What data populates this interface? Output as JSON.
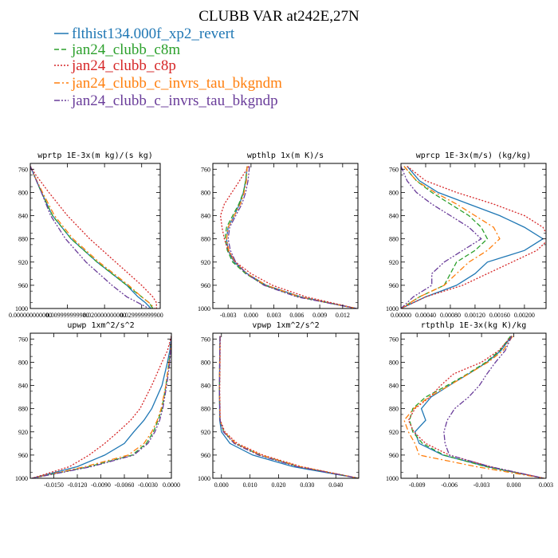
{
  "figure": {
    "title": "CLUBB VAR at242E,27N",
    "legend": [
      {
        "name": "flthist134.000f_xp2_revert",
        "color": "#1f77b4",
        "dash": "solid"
      },
      {
        "name": "jan24_clubb_c8m",
        "color": "#2ca02c",
        "dash": "dash"
      },
      {
        "name": "jan24_clubb_c8p",
        "color": "#d62728",
        "dash": "dot"
      },
      {
        "name": "jan24_clubb_c_invrs_tau_bkgndm",
        "color": "#ff7f0e",
        "dash": "dashdot"
      },
      {
        "name": "jan24_clubb_c_invrs_tau_bkgndp",
        "color": "#6a3d9a",
        "dash": "dashdotdot"
      }
    ]
  },
  "chart_data": [
    {
      "type": "line",
      "title": "wprtp  1E-3x(m kg)/(s kg)",
      "xlim": [
        0.0,
        0.035
      ],
      "ylim": [
        1000,
        750
      ],
      "xticks": [
        0.0,
        0.01,
        0.02,
        0.03
      ],
      "xtick_labels": [
        "0.000000000000",
        "0.009999999980",
        "0.020000000000",
        "0.029999999900"
      ],
      "yticks": [
        760,
        800,
        840,
        880,
        920,
        960,
        1000
      ],
      "ytick_labels": [
        "760",
        "800",
        "840",
        "880",
        "920",
        "960",
        "1000"
      ],
      "y": [
        755,
        770,
        800,
        840,
        880,
        920,
        960,
        980,
        990,
        1000
      ],
      "series": [
        {
          "name": "flthist134.000f_xp2_revert",
          "values": [
            0.0,
            0.001,
            0.003,
            0.006,
            0.011,
            0.018,
            0.026,
            0.029,
            0.031,
            0.0325
          ]
        },
        {
          "name": "jan24_clubb_c8m",
          "values": [
            0.0,
            0.001,
            0.003,
            0.006,
            0.011,
            0.018,
            0.026,
            0.03,
            0.032,
            0.033
          ]
        },
        {
          "name": "jan24_clubb_c8p",
          "values": [
            0.0,
            0.0015,
            0.005,
            0.01,
            0.016,
            0.023,
            0.03,
            0.033,
            0.034,
            0.034
          ]
        },
        {
          "name": "jan24_clubb_c_invrs_tau_bkgndm",
          "values": [
            0.0,
            0.001,
            0.0033,
            0.0065,
            0.0115,
            0.0185,
            0.0265,
            0.03,
            0.032,
            0.0335
          ]
        },
        {
          "name": "jan24_clubb_c_invrs_tau_bkgndp",
          "values": [
            0.0,
            0.001,
            0.003,
            0.0055,
            0.0095,
            0.015,
            0.022,
            0.026,
            0.029,
            0.032
          ]
        }
      ]
    },
    {
      "type": "line",
      "title": "wpthlp  1x(m K)/s",
      "xlim": [
        -0.005,
        0.014
      ],
      "ylim": [
        1000,
        750
      ],
      "xticks": [
        -0.003,
        0.0,
        0.003,
        0.006,
        0.009,
        0.012
      ],
      "xtick_labels": [
        "-0.003",
        "0.000",
        "0.003",
        "0.006",
        "0.009",
        "0.012"
      ],
      "yticks": [
        760,
        800,
        840,
        880,
        920,
        960,
        1000
      ],
      "ytick_labels": [
        "760",
        "800",
        "840",
        "880",
        "920",
        "960",
        "1000"
      ],
      "y": [
        755,
        780,
        800,
        820,
        840,
        860,
        880,
        900,
        920,
        940,
        960,
        980,
        1000
      ],
      "series": [
        {
          "name": "flthist134.000f_xp2_revert",
          "values": [
            -0.0005,
            -0.0007,
            -0.001,
            -0.0015,
            -0.0022,
            -0.003,
            -0.0032,
            -0.003,
            -0.0022,
            -0.0005,
            0.002,
            0.0065,
            0.0138
          ]
        },
        {
          "name": "jan24_clubb_c8m",
          "values": [
            -0.0005,
            -0.0007,
            -0.001,
            -0.0016,
            -0.0024,
            -0.0032,
            -0.0034,
            -0.0031,
            -0.0024,
            -0.0007,
            0.0018,
            0.0062,
            0.0138
          ]
        },
        {
          "name": "jan24_clubb_c8p",
          "values": [
            -0.0003,
            -0.0015,
            -0.0025,
            -0.0035,
            -0.004,
            -0.0038,
            -0.0035,
            -0.003,
            -0.002,
            0.0,
            0.0028,
            0.0072,
            0.0138
          ]
        },
        {
          "name": "jan24_clubb_c_invrs_tau_bkgndm",
          "values": [
            -0.0005,
            -0.0006,
            -0.0009,
            -0.0014,
            -0.0022,
            -0.003,
            -0.0032,
            -0.0029,
            -0.0021,
            -0.0005,
            0.002,
            0.0064,
            0.0138
          ]
        },
        {
          "name": "jan24_clubb_c_invrs_tau_bkgndp",
          "values": [
            -0.0002,
            -0.0004,
            -0.0007,
            -0.0012,
            -0.002,
            -0.0028,
            -0.003,
            -0.0027,
            -0.002,
            -0.0006,
            0.0017,
            0.006,
            0.0138
          ]
        }
      ]
    },
    {
      "type": "line",
      "title": "wprcp  1E-3x(m/s) (kg/kg)",
      "xlim": [
        0.0,
        0.00235
      ],
      "ylim": [
        1000,
        750
      ],
      "xticks": [
        0.0,
        0.0004,
        0.0008,
        0.0012,
        0.0016,
        0.002
      ],
      "xtick_labels": [
        "0.00000",
        "0.00040",
        "0.00080",
        "0.00120",
        "0.00160",
        "0.00200"
      ],
      "yticks": [
        760,
        800,
        840,
        880,
        920,
        960,
        1000
      ],
      "ytick_labels": [
        "760",
        "800",
        "840",
        "880",
        "920",
        "960",
        "1000"
      ],
      "y": [
        755,
        780,
        800,
        820,
        840,
        860,
        880,
        900,
        920,
        940,
        960,
        980,
        1000
      ],
      "series": [
        {
          "name": "flthist134.000f_xp2_revert",
          "values": [
            0.0001,
            0.0003,
            0.0006,
            0.0011,
            0.0016,
            0.002,
            0.0023,
            0.002,
            0.0014,
            0.0012,
            0.0009,
            0.0004,
            0.0
          ]
        },
        {
          "name": "jan24_clubb_c8m",
          "values": [
            5e-05,
            0.00025,
            0.0005,
            0.0008,
            0.0011,
            0.0013,
            0.0014,
            0.0012,
            0.0009,
            0.0008,
            0.0007,
            0.0003,
            0.0
          ]
        },
        {
          "name": "jan24_clubb_c8p",
          "values": [
            0.0001,
            0.0004,
            0.0009,
            0.0015,
            0.002,
            0.0023,
            0.0024,
            0.0022,
            0.0018,
            0.0014,
            0.001,
            0.0004,
            0.0
          ]
        },
        {
          "name": "jan24_clubb_c_invrs_tau_bkgndm",
          "values": [
            5e-05,
            0.00025,
            0.00055,
            0.0009,
            0.0012,
            0.0015,
            0.0016,
            0.0014,
            0.0011,
            0.0009,
            0.0007,
            0.0003,
            0.0
          ]
        },
        {
          "name": "jan24_clubb_c_invrs_tau_bkgndp",
          "values": [
            0.0,
            0.0001,
            0.00025,
            0.0005,
            0.0008,
            0.0011,
            0.0013,
            0.001,
            0.0007,
            0.0005,
            0.0005,
            0.0002,
            0.0
          ]
        }
      ]
    },
    {
      "type": "line",
      "title": "upwp  1xm^2/s^2",
      "xlim": [
        -0.018,
        0.0
      ],
      "ylim": [
        1000,
        750
      ],
      "xticks": [
        -0.015,
        -0.012,
        -0.009,
        -0.006,
        -0.003,
        0.0
      ],
      "xtick_labels": [
        "-0.0150",
        "-0.0120",
        "-0.0090",
        "-0.0060",
        "-0.0030",
        "0.0000"
      ],
      "yticks": [
        760,
        800,
        840,
        880,
        920,
        960,
        1000
      ],
      "ytick_labels": [
        "760",
        "800",
        "840",
        "880",
        "920",
        "960",
        "1000"
      ],
      "y": [
        755,
        780,
        800,
        840,
        880,
        900,
        920,
        940,
        960,
        980,
        1000
      ],
      "series": [
        {
          "name": "flthist134.000f_xp2_revert",
          "values": [
            0.0,
            -0.0002,
            -0.0005,
            -0.0012,
            -0.0025,
            -0.0035,
            -0.0048,
            -0.006,
            -0.0085,
            -0.012,
            -0.0178
          ]
        },
        {
          "name": "jan24_clubb_c8m",
          "values": [
            0.0,
            -0.0001,
            -0.0003,
            -0.0007,
            -0.0012,
            -0.0017,
            -0.0023,
            -0.0032,
            -0.005,
            -0.0105,
            -0.0178
          ]
        },
        {
          "name": "jan24_clubb_c8p",
          "values": [
            0.0,
            -0.0005,
            -0.0012,
            -0.0025,
            -0.004,
            -0.0052,
            -0.0068,
            -0.0085,
            -0.0105,
            -0.013,
            -0.0178
          ]
        },
        {
          "name": "jan24_clubb_c_invrs_tau_bkgndm",
          "values": [
            0.0,
            -0.0001,
            -0.0003,
            -0.0007,
            -0.0013,
            -0.0018,
            -0.0025,
            -0.0035,
            -0.0055,
            -0.011,
            -0.0178
          ]
        },
        {
          "name": "jan24_clubb_c_invrs_tau_bkgndp",
          "values": [
            0.0,
            -0.0001,
            -0.0002,
            -0.0006,
            -0.0011,
            -0.0015,
            -0.0021,
            -0.003,
            -0.0048,
            -0.0102,
            -0.0178
          ]
        }
      ]
    },
    {
      "type": "line",
      "title": "vpwp  1xm^2/s^2",
      "xlim": [
        -0.003,
        0.048
      ],
      "ylim": [
        1000,
        750
      ],
      "xticks": [
        0.0,
        0.01,
        0.02,
        0.03,
        0.04
      ],
      "xtick_labels": [
        "0.000",
        "0.010",
        "0.020",
        "0.030",
        "0.040"
      ],
      "yticks": [
        760,
        800,
        840,
        880,
        920,
        960,
        1000
      ],
      "ytick_labels": [
        "760",
        "800",
        "840",
        "880",
        "920",
        "960",
        "1000"
      ],
      "y": [
        755,
        800,
        850,
        900,
        920,
        940,
        960,
        980,
        1000
      ],
      "series": [
        {
          "name": "flthist134.000f_xp2_revert",
          "values": [
            -0.0005,
            -0.0006,
            -0.0007,
            -0.0006,
            0.0,
            0.003,
            0.011,
            0.025,
            0.048
          ]
        },
        {
          "name": "jan24_clubb_c8m",
          "values": [
            -0.0005,
            -0.0006,
            -0.0007,
            -0.0005,
            0.0008,
            0.0048,
            0.0135,
            0.027,
            0.048
          ]
        },
        {
          "name": "jan24_clubb_c8p",
          "values": [
            -0.0004,
            -0.0005,
            -0.0006,
            -0.0004,
            0.0012,
            0.0055,
            0.0145,
            0.028,
            0.048
          ]
        },
        {
          "name": "jan24_clubb_c_invrs_tau_bkgndm",
          "values": [
            -0.0005,
            -0.0006,
            -0.0007,
            -0.0005,
            0.0009,
            0.005,
            0.0138,
            0.0275,
            0.048
          ]
        },
        {
          "name": "jan24_clubb_c_invrs_tau_bkgndp",
          "values": [
            -0.0005,
            -0.0006,
            -0.0007,
            -0.0005,
            0.0007,
            0.0045,
            0.013,
            0.0265,
            0.048
          ]
        }
      ]
    },
    {
      "type": "line",
      "title": "rtpthlp  1E-3x(kg K)/kg",
      "xlim": [
        -0.0105,
        0.003
      ],
      "ylim": [
        1000,
        750
      ],
      "xticks": [
        -0.009,
        -0.006,
        -0.003,
        0.0,
        0.003
      ],
      "xtick_labels": [
        "-0.009",
        "-0.006",
        "-0.003",
        "0.000",
        "0.003"
      ],
      "yticks": [
        760,
        800,
        840,
        880,
        920,
        960,
        1000
      ],
      "ytick_labels": [
        "760",
        "800",
        "840",
        "880",
        "920",
        "960",
        "1000"
      ],
      "y": [
        755,
        780,
        800,
        820,
        840,
        860,
        880,
        900,
        920,
        940,
        960,
        980,
        1000
      ],
      "series": [
        {
          "name": "flthist134.000f_xp2_revert",
          "values": [
            -0.0002,
            -0.0012,
            -0.0025,
            -0.0042,
            -0.006,
            -0.0077,
            -0.0086,
            -0.0082,
            -0.0092,
            -0.0088,
            -0.0066,
            -0.0025,
            0.0028
          ]
        },
        {
          "name": "jan24_clubb_c8m",
          "values": [
            -0.0003,
            -0.0013,
            -0.0026,
            -0.0043,
            -0.0062,
            -0.0082,
            -0.0094,
            -0.0097,
            -0.0094,
            -0.0085,
            -0.0065,
            -0.0026,
            0.0028
          ]
        },
        {
          "name": "jan24_clubb_c8p",
          "values": [
            -0.0002,
            -0.0014,
            -0.003,
            -0.0056,
            -0.0068,
            -0.0078,
            -0.0092,
            -0.0098,
            -0.0093,
            -0.0082,
            -0.006,
            -0.0022,
            0.0028
          ]
        },
        {
          "name": "jan24_clubb_c_invrs_tau_bkgndm",
          "values": [
            -0.0001,
            -0.001,
            -0.0024,
            -0.0042,
            -0.006,
            -0.0079,
            -0.0093,
            -0.0102,
            -0.0098,
            -0.0092,
            -0.0088,
            -0.0035,
            0.0028
          ]
        },
        {
          "name": "jan24_clubb_c_invrs_tau_bkgndp",
          "values": [
            -0.0002,
            -0.0008,
            -0.0017,
            -0.0025,
            -0.0032,
            -0.0042,
            -0.0055,
            -0.0062,
            -0.0065,
            -0.0064,
            -0.006,
            -0.0022,
            0.0028
          ]
        }
      ]
    }
  ]
}
